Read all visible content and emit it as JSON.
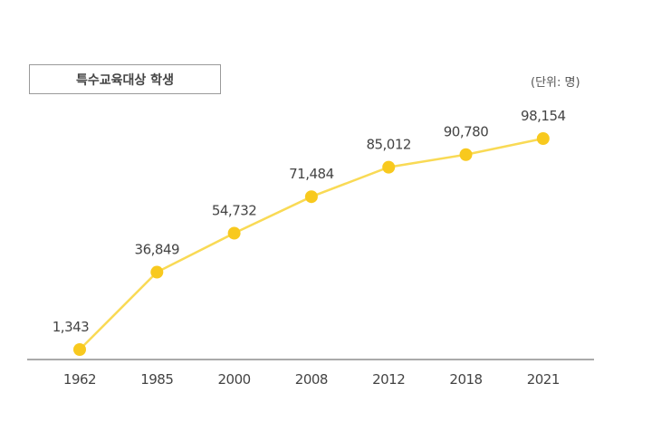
{
  "chart_data": {
    "type": "line",
    "title": "특수교육대상 학생",
    "unit_label": "(단위: 명)",
    "categories": [
      "1962",
      "1985",
      "2000",
      "2008",
      "2012",
      "2018",
      "2021"
    ],
    "values": [
      1343,
      36849,
      54732,
      71484,
      85012,
      90780,
      98154
    ],
    "value_labels": [
      "1,343",
      "36,849",
      "54,732",
      "71,484",
      "85,012",
      "90,780",
      "98,154"
    ],
    "xlabel": "",
    "ylabel": "",
    "grid": false,
    "colors": {
      "line": "#f9da55",
      "marker": "#f8c91e",
      "axis": "#777777"
    }
  }
}
